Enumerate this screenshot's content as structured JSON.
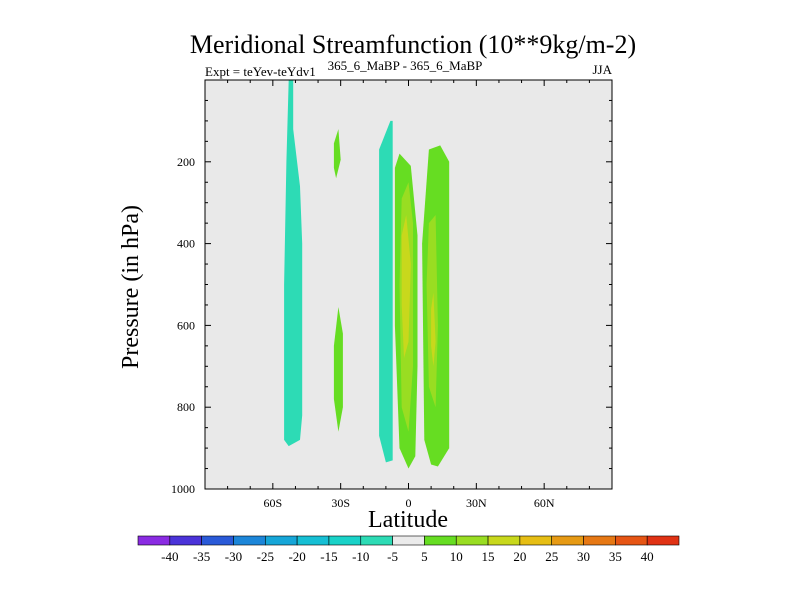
{
  "chart_data": {
    "type": "contour",
    "title": "Meridional Streamfunction (10**9kg/m-2)",
    "subtitle_left": "Expt = teYev-teYdv1",
    "subtitle_center": "365_6_MaBP - 365_6_MaBP",
    "subtitle_right": "JJA",
    "xlabel": "Latitude",
    "ylabel": "Pressure (in hPa)",
    "xlim": [
      -90,
      90
    ],
    "ylim": [
      1000,
      0
    ],
    "xticks": [
      {
        "value": -60,
        "label": "60S"
      },
      {
        "value": -30,
        "label": "30S"
      },
      {
        "value": 0,
        "label": "0"
      },
      {
        "value": 30,
        "label": "30N"
      },
      {
        "value": 60,
        "label": "60N"
      }
    ],
    "yticks": [
      {
        "value": 200,
        "label": "200"
      },
      {
        "value": 400,
        "label": "400"
      },
      {
        "value": 600,
        "label": "600"
      },
      {
        "value": 800,
        "label": "800"
      },
      {
        "value": 1000,
        "label": "1000"
      }
    ],
    "background_range": [
      -5,
      5
    ],
    "colorbar": {
      "levels": [
        -40,
        -35,
        -30,
        -25,
        -20,
        -15,
        -10,
        -5,
        5,
        10,
        15,
        20,
        25,
        30,
        35,
        40
      ],
      "colors": [
        "#8a2be2",
        "#4b33d9",
        "#2a5ad8",
        "#1c86d9",
        "#16a6d8",
        "#16bfd4",
        "#19d2c8",
        "#2ddbb5",
        "#ebebeb",
        "#66dd22",
        "#99dd22",
        "#c8d81c",
        "#e6be14",
        "#e69a14",
        "#e67814",
        "#e65514",
        "#e03214"
      ]
    },
    "regions": [
      {
        "name": "sh-negative-cell",
        "level": -7,
        "points": [
          [
            -53,
            0
          ],
          [
            -51,
            0
          ],
          [
            -51,
            120
          ],
          [
            -48,
            260
          ],
          [
            -47,
            400
          ],
          [
            -47,
            600
          ],
          [
            -47,
            820
          ],
          [
            -48,
            880
          ],
          [
            -53,
            895
          ],
          [
            -55,
            880
          ],
          [
            -55,
            500
          ],
          [
            -54,
            200
          ]
        ]
      },
      {
        "name": "small-positive-upper",
        "level": 7,
        "points": [
          [
            -33,
            155
          ],
          [
            -31,
            120
          ],
          [
            -30,
            195
          ],
          [
            -32,
            240
          ],
          [
            -33,
            215
          ]
        ]
      },
      {
        "name": "small-positive-lower",
        "level": 7,
        "points": [
          [
            -31,
            555
          ],
          [
            -29,
            620
          ],
          [
            -29,
            800
          ],
          [
            -31,
            860
          ],
          [
            -33,
            780
          ],
          [
            -33,
            650
          ]
        ]
      },
      {
        "name": "eq-negative-strip",
        "level": -7,
        "points": [
          [
            -7,
            100
          ],
          [
            -8,
            100
          ],
          [
            -13,
            170
          ],
          [
            -13,
            300
          ],
          [
            -13,
            870
          ],
          [
            -10,
            935
          ],
          [
            -7,
            930
          ],
          [
            -7,
            250
          ]
        ]
      },
      {
        "name": "eq-positive-main",
        "level": 7,
        "points": [
          [
            -6,
            215
          ],
          [
            -4,
            180
          ],
          [
            1,
            210
          ],
          [
            4,
            380
          ],
          [
            4,
            700
          ],
          [
            3,
            920
          ],
          [
            0,
            950
          ],
          [
            -4,
            900
          ],
          [
            -6,
            600
          ]
        ]
      },
      {
        "name": "nh-positive-column",
        "level": 7,
        "points": [
          [
            9,
            170
          ],
          [
            14,
            160
          ],
          [
            18,
            200
          ],
          [
            18,
            900
          ],
          [
            13,
            945
          ],
          [
            10,
            940
          ],
          [
            7,
            880
          ],
          [
            6,
            400
          ]
        ]
      },
      {
        "name": "eq-positive-10",
        "level": 12,
        "points": [
          [
            -3,
            290
          ],
          [
            0,
            250
          ],
          [
            2,
            350
          ],
          [
            2,
            700
          ],
          [
            0,
            860
          ],
          [
            -3,
            800
          ],
          [
            -4,
            500
          ]
        ]
      },
      {
        "name": "nh-positive-10",
        "level": 12,
        "points": [
          [
            9,
            350
          ],
          [
            12,
            330
          ],
          [
            13,
            600
          ],
          [
            12,
            800
          ],
          [
            9,
            750
          ],
          [
            8,
            500
          ]
        ]
      },
      {
        "name": "eq-positive-15",
        "level": 17,
        "points": [
          [
            -3,
            380
          ],
          [
            -1,
            330
          ],
          [
            1,
            450
          ],
          [
            0,
            640
          ],
          [
            -2,
            680
          ],
          [
            -3,
            550
          ]
        ]
      },
      {
        "name": "nh-positive-15",
        "level": 17,
        "points": [
          [
            10,
            560
          ],
          [
            11,
            520
          ],
          [
            12,
            640
          ],
          [
            11,
            700
          ],
          [
            10,
            650
          ]
        ]
      }
    ]
  }
}
